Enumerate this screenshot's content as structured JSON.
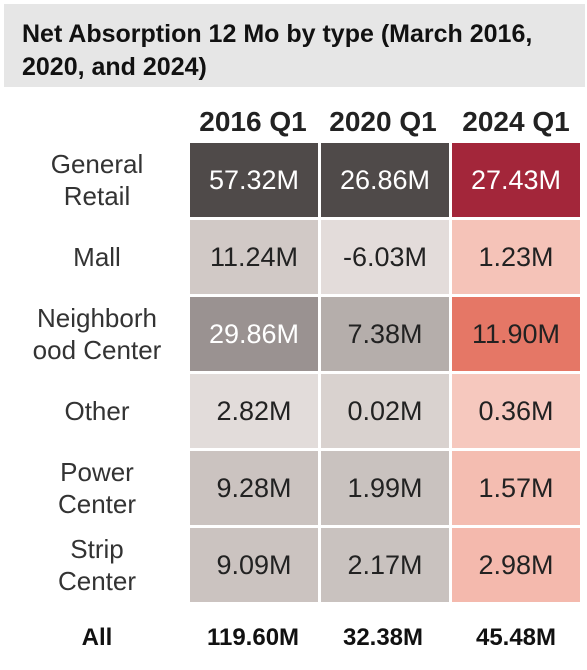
{
  "title": "Net Absorption 12 Mo by type (March 2016, 2020, and 2024)",
  "chart_data": {
    "type": "heatmap",
    "title": "Net Absorption 12 Mo by type (March 2016, 2020, and 2024)",
    "columns": [
      "2016 Q1",
      "2020 Q1",
      "2024 Q1"
    ],
    "rows": [
      "General Retail",
      "Mall",
      "Neighborhood Center",
      "Other",
      "Power Center",
      "Strip Center"
    ],
    "row_display": [
      [
        "General",
        "Retail"
      ],
      [
        "Mall"
      ],
      [
        "Neighborh",
        "ood Center"
      ],
      [
        "Other"
      ],
      [
        "Power",
        "Center"
      ],
      [
        "Strip",
        "Center"
      ]
    ],
    "values": [
      [
        57.32,
        26.86,
        27.43
      ],
      [
        11.24,
        -6.03,
        1.23
      ],
      [
        29.86,
        7.38,
        11.9
      ],
      [
        2.82,
        0.02,
        0.36
      ],
      [
        9.28,
        1.99,
        1.57
      ],
      [
        9.09,
        2.17,
        2.98
      ]
    ],
    "labels": [
      [
        "57.32M",
        "26.86M",
        "27.43M"
      ],
      [
        "11.24M",
        "-6.03M",
        "1.23M"
      ],
      [
        "29.86M",
        "7.38M",
        "11.90M"
      ],
      [
        "2.82M",
        "0.02M",
        "0.36M"
      ],
      [
        "9.28M",
        "1.99M",
        "1.57M"
      ],
      [
        "9.09M",
        "2.17M",
        "2.98M"
      ]
    ],
    "cell_colors": [
      [
        "#4f4a49",
        "#4f4a49",
        "#a3263a"
      ],
      [
        "#d1c9c6",
        "#e3dcda",
        "#f5c3b8"
      ],
      [
        "#9a9291",
        "#b5aeab",
        "#e57766"
      ],
      [
        "#e2dcda",
        "#d9d2cf",
        "#f6c8be"
      ],
      [
        "#cbc3c0",
        "#c9c2bf",
        "#f4bdb1"
      ],
      [
        "#cbc3c0",
        "#c9c2bf",
        "#f4b9ad"
      ]
    ],
    "text_colors": [
      [
        "#ffffff",
        "#ffffff",
        "#ffffff"
      ],
      [
        "#222222",
        "#222222",
        "#222222"
      ],
      [
        "#ffffff",
        "#222222",
        "#222222"
      ],
      [
        "#222222",
        "#222222",
        "#222222"
      ],
      [
        "#222222",
        "#222222",
        "#222222"
      ],
      [
        "#222222",
        "#222222",
        "#222222"
      ]
    ],
    "total_label": "All",
    "totals": [
      119.6,
      32.38,
      45.48
    ],
    "total_labels": [
      "119.60M",
      "32.38M",
      "45.48M"
    ]
  }
}
